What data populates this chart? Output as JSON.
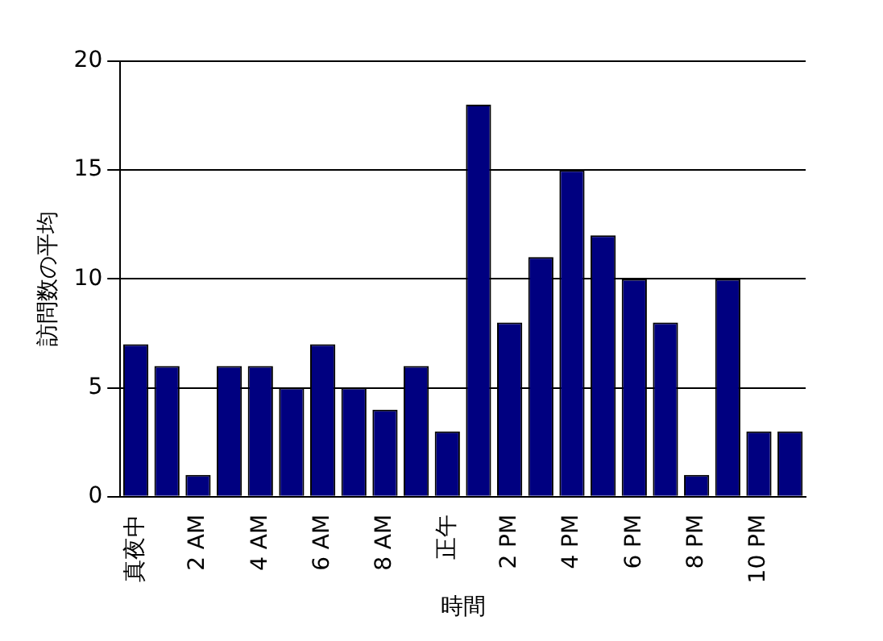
{
  "chart_data": {
    "type": "bar",
    "xlabel": "時間",
    "ylabel": "訪問数の平均",
    "categories": [
      "真夜中",
      null,
      "2 AM",
      null,
      "4 AM",
      null,
      "6 AM",
      null,
      "8 AM",
      null,
      "正午",
      null,
      "2 PM",
      null,
      "4 PM",
      null,
      "6 PM",
      null,
      "8 PM",
      null,
      "10 PM",
      null
    ],
    "values": [
      7,
      6,
      1,
      6,
      6,
      5,
      7,
      5,
      4,
      6,
      3,
      18,
      8,
      11,
      15,
      12,
      10,
      8,
      1,
      10,
      3,
      3
    ],
    "color": "#000080",
    "ylim": [
      0,
      20
    ],
    "yticks": [
      0,
      5,
      10,
      15,
      20
    ],
    "grid": "y",
    "legend": false
  }
}
